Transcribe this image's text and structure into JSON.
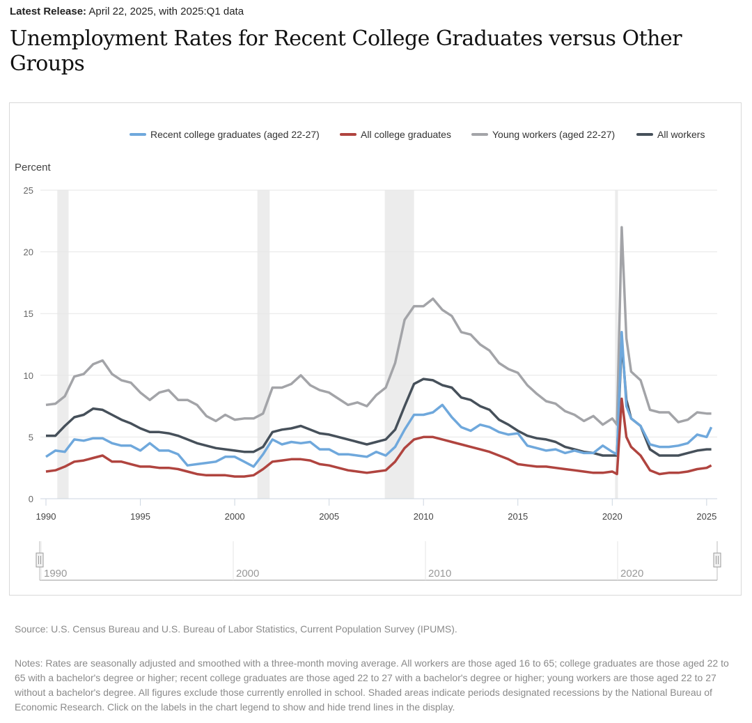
{
  "header": {
    "release_label": "Latest Release:",
    "release_text": "April 22, 2025, with 2025:Q1 data",
    "title": "Unemployment Rates for Recent College Graduates versus Other Groups"
  },
  "chart_data": {
    "type": "line",
    "title": "Unemployment Rates for Recent College Graduates versus Other Groups",
    "ylabel": "Percent",
    "xlabel": "",
    "ylim": [
      0,
      25
    ],
    "xlim": [
      1990,
      2025.3
    ],
    "yticks": [
      "0",
      "5",
      "10",
      "15",
      "20",
      "25"
    ],
    "xticks": [
      "1990",
      "1995",
      "2000",
      "2005",
      "2010",
      "2015",
      "2020",
      "2025"
    ],
    "navigator_ticks": [
      "1990",
      "2000",
      "2010",
      "2020"
    ],
    "grid": true,
    "legend_position": "top",
    "recessions": [
      [
        1990.6,
        1991.2
      ],
      [
        2001.2,
        2001.85
      ],
      [
        2007.95,
        2009.5
      ],
      [
        2020.15,
        2020.3
      ]
    ],
    "x": [
      1990,
      1990.5,
      1991,
      1991.5,
      1992,
      1992.5,
      1993,
      1993.5,
      1994,
      1994.5,
      1995,
      1995.5,
      1996,
      1996.5,
      1997,
      1997.5,
      1998,
      1998.5,
      1999,
      1999.5,
      2000,
      2000.5,
      2001,
      2001.5,
      2002,
      2002.5,
      2003,
      2003.5,
      2004,
      2004.5,
      2005,
      2005.5,
      2006,
      2006.5,
      2007,
      2007.5,
      2008,
      2008.5,
      2009,
      2009.5,
      2010,
      2010.5,
      2011,
      2011.5,
      2012,
      2012.5,
      2013,
      2013.5,
      2014,
      2014.5,
      2015,
      2015.5,
      2016,
      2016.5,
      2017,
      2017.5,
      2018,
      2018.5,
      2019,
      2019.5,
      2020,
      2020.25,
      2020.5,
      2020.75,
      2021,
      2021.5,
      2022,
      2022.5,
      2023,
      2023.5,
      2024,
      2024.5,
      2025,
      2025.25
    ],
    "series": [
      {
        "name": "Young workers (aged 22-27)",
        "color": "#a3a4a8",
        "values": [
          7.6,
          7.7,
          8.3,
          9.9,
          10.1,
          10.9,
          11.2,
          10.1,
          9.6,
          9.4,
          8.6,
          8.0,
          8.6,
          8.8,
          8.0,
          8.0,
          7.6,
          6.7,
          6.3,
          6.8,
          6.4,
          6.5,
          6.5,
          6.9,
          9.0,
          9.0,
          9.3,
          10.0,
          9.2,
          8.8,
          8.6,
          8.1,
          7.6,
          7.8,
          7.5,
          8.4,
          9.0,
          11.0,
          14.5,
          15.6,
          15.6,
          16.2,
          15.3,
          14.8,
          13.5,
          13.3,
          12.5,
          12.0,
          11.0,
          10.5,
          10.2,
          9.2,
          8.5,
          7.9,
          7.7,
          7.1,
          6.8,
          6.3,
          6.7,
          6.0,
          6.5,
          6.0,
          22.0,
          13.0,
          10.3,
          9.6,
          7.2,
          7.0,
          7.0,
          6.2,
          6.4,
          7.0,
          6.9,
          6.9
        ]
      },
      {
        "name": "All workers",
        "color": "#46505a",
        "values": [
          5.1,
          5.1,
          5.9,
          6.6,
          6.8,
          7.3,
          7.2,
          6.8,
          6.4,
          6.1,
          5.7,
          5.4,
          5.4,
          5.3,
          5.1,
          4.8,
          4.5,
          4.3,
          4.1,
          4.0,
          3.9,
          3.8,
          3.8,
          4.2,
          5.4,
          5.6,
          5.7,
          5.9,
          5.6,
          5.3,
          5.2,
          5.0,
          4.8,
          4.6,
          4.4,
          4.6,
          4.8,
          5.6,
          7.5,
          9.3,
          9.7,
          9.6,
          9.2,
          9.0,
          8.2,
          8.0,
          7.5,
          7.2,
          6.4,
          6.0,
          5.5,
          5.1,
          4.9,
          4.8,
          4.6,
          4.2,
          4.0,
          3.8,
          3.7,
          3.5,
          3.5,
          3.5,
          12.8,
          8.0,
          6.5,
          5.9,
          4.0,
          3.5,
          3.5,
          3.5,
          3.7,
          3.9,
          4.0,
          4.0
        ]
      },
      {
        "name": "Recent college graduates (aged 22-27)",
        "color": "#6fa8dc",
        "values": [
          3.4,
          3.9,
          3.8,
          4.8,
          4.7,
          4.9,
          4.9,
          4.5,
          4.3,
          4.3,
          3.9,
          4.5,
          3.9,
          3.9,
          3.6,
          2.7,
          2.8,
          2.9,
          3.0,
          3.4,
          3.4,
          3.0,
          2.6,
          3.6,
          4.8,
          4.4,
          4.6,
          4.5,
          4.6,
          4.0,
          4.0,
          3.6,
          3.6,
          3.5,
          3.4,
          3.8,
          3.5,
          4.2,
          5.6,
          6.8,
          6.8,
          7.0,
          7.6,
          6.6,
          5.8,
          5.5,
          6.0,
          5.8,
          5.4,
          5.2,
          5.3,
          4.3,
          4.1,
          3.9,
          4.0,
          3.7,
          3.9,
          3.7,
          3.7,
          4.3,
          3.8,
          3.6,
          13.5,
          7.5,
          6.5,
          5.9,
          4.4,
          4.2,
          4.2,
          4.3,
          4.5,
          5.2,
          5.0,
          5.8
        ]
      },
      {
        "name": "All college graduates",
        "color": "#b0443f",
        "values": [
          2.2,
          2.3,
          2.6,
          3.0,
          3.1,
          3.3,
          3.5,
          3.0,
          3.0,
          2.8,
          2.6,
          2.6,
          2.5,
          2.5,
          2.4,
          2.2,
          2.0,
          1.9,
          1.9,
          1.9,
          1.8,
          1.8,
          1.9,
          2.4,
          3.0,
          3.1,
          3.2,
          3.2,
          3.1,
          2.8,
          2.7,
          2.5,
          2.3,
          2.2,
          2.1,
          2.2,
          2.3,
          3.0,
          4.1,
          4.8,
          5.0,
          5.0,
          4.8,
          4.6,
          4.4,
          4.2,
          4.0,
          3.8,
          3.5,
          3.2,
          2.8,
          2.7,
          2.6,
          2.6,
          2.5,
          2.4,
          2.3,
          2.2,
          2.1,
          2.1,
          2.2,
          2.0,
          8.1,
          5.0,
          4.2,
          3.5,
          2.3,
          2.0,
          2.1,
          2.1,
          2.2,
          2.4,
          2.5,
          2.7
        ]
      }
    ],
    "legend": [
      {
        "name": "Recent college graduates (aged 22-27)",
        "color": "#6fa8dc"
      },
      {
        "name": "All college graduates",
        "color": "#b0443f"
      },
      {
        "name": "Young workers (aged 22-27)",
        "color": "#a3a4a8"
      },
      {
        "name": "All workers",
        "color": "#46505a"
      }
    ]
  },
  "footer": {
    "source": "Source: U.S. Census Bureau and U.S. Bureau of Labor Statistics, Current Population Survey (IPUMS).",
    "notes": "Notes: Rates are seasonally adjusted and smoothed with a three-month moving average. All workers are those aged 16 to 65; college graduates are those aged 22 to 65 with a bachelor's degree or higher; recent college graduates are those aged 22 to 27 with a bachelor's degree or higher; young workers are those aged 22 to 27 without a bachelor's degree. All figures exclude those currently enrolled in school. Shaded areas indicate periods designated recessions by the National Bureau of Economic Research. Click on the labels in the chart legend to show and hide trend lines in the display."
  }
}
